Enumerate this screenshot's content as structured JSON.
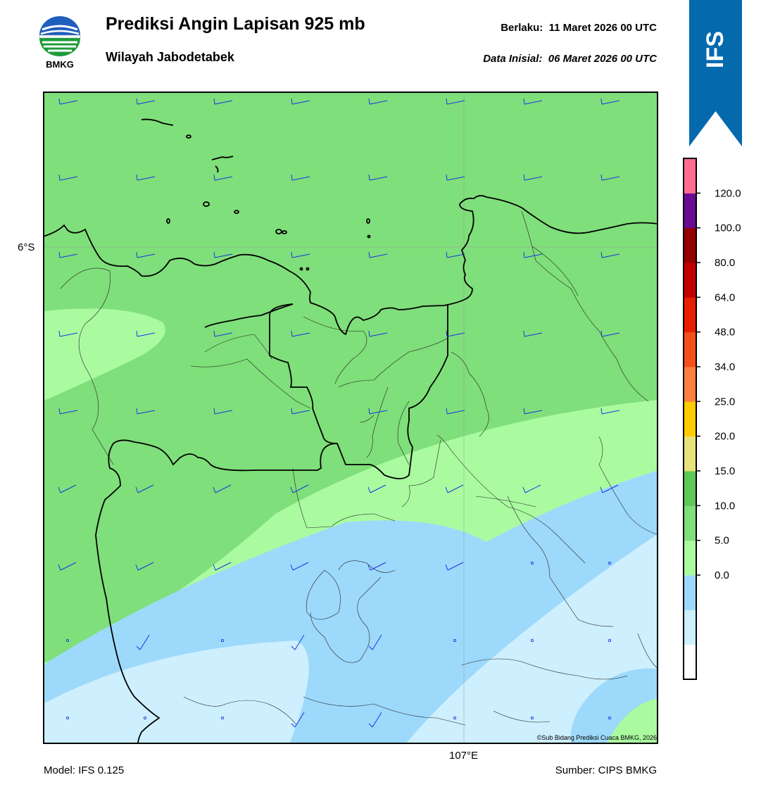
{
  "header": {
    "logo_text": "BMKG",
    "title": "Prediksi Angin Lapisan 925 mb",
    "subtitle": "Wilayah Jabodetabek",
    "valid_label": "Berlaku:",
    "valid_time": "11 Maret 2026 00 UTC",
    "init_label": "Data Inisial:",
    "init_time": "06 Maret 2026 00 UTC",
    "model_badge": "IFS"
  },
  "map": {
    "lat_label": "6°S",
    "lon_label": "107°E",
    "copyright": "©Sub Bidang Prediksi Cuaca BMKG, 2026",
    "wind_speed_zones_colors": [
      "#cdeffe",
      "#9dd9fb",
      "#aafba0",
      "#7fdf7a"
    ]
  },
  "colorbar": {
    "ticks": [
      "120.0",
      "100.0",
      "80.0",
      "64.0",
      "48.0",
      "34.0",
      "25.0",
      "20.0",
      "15.0",
      "10.0",
      "5.0",
      "0.0"
    ],
    "colors": [
      "#ffffff",
      "#cdeffe",
      "#9dd9fb",
      "#aafba0",
      "#7fdf7a",
      "#5dc958",
      "#e7e37a",
      "#ffcc00",
      "#ff8040",
      "#f44f1b",
      "#e81e00",
      "#c20000",
      "#960000",
      "#6a0b94",
      "#ff6d8f"
    ]
  },
  "footer": {
    "model": "Model: IFS 0.125",
    "source": "Sumber: CIPS BMKG"
  }
}
